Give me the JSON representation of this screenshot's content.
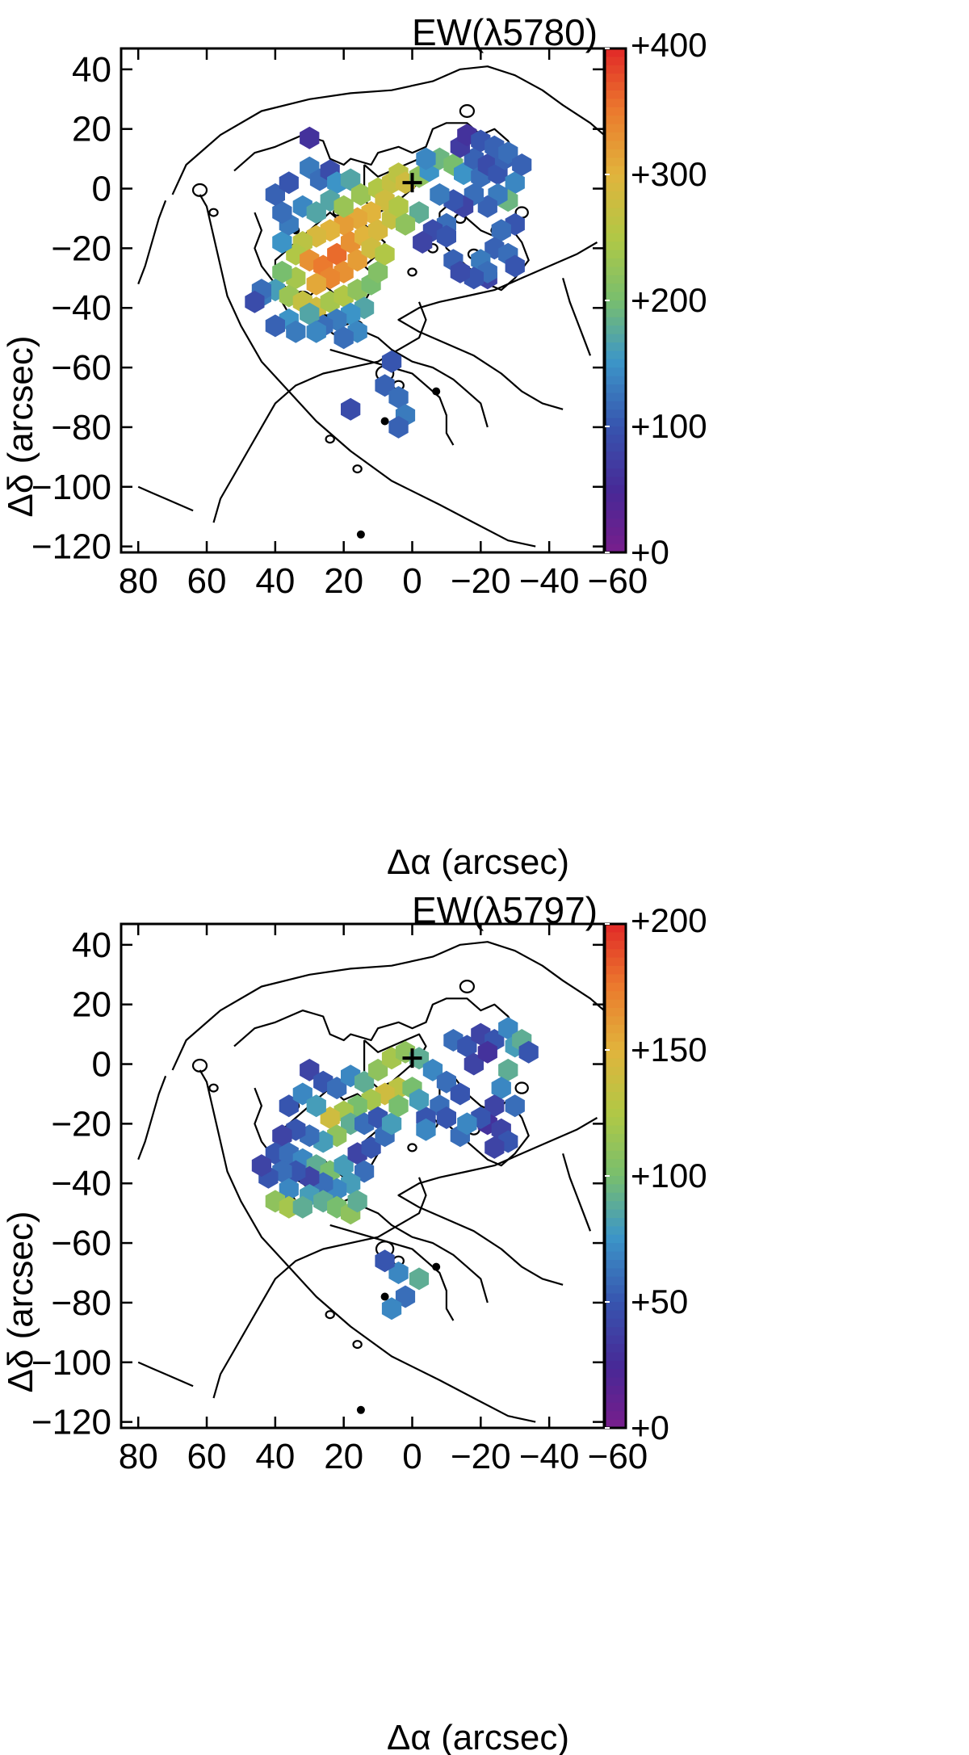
{
  "chart_data": [
    {
      "type": "heatmap",
      "title": "EW(λ5780)",
      "xlabel": "Δα (arcsec)",
      "ylabel": "Δδ (arcsec)",
      "xlim": [
        85,
        -56
      ],
      "ylim": [
        -122,
        47
      ],
      "xticks": [
        "80",
        "60",
        "40",
        "20",
        "0",
        "−20",
        "−40",
        "−60"
      ],
      "xtick_values": [
        80,
        60,
        40,
        20,
        0,
        -20,
        -40,
        -60
      ],
      "yticks": [
        "40",
        "20",
        "0",
        "−20",
        "−40",
        "−60",
        "−80",
        "−100",
        "−120"
      ],
      "ytick_values": [
        40,
        20,
        0,
        -20,
        -40,
        -60,
        -80,
        -100,
        -120
      ],
      "colorbar": {
        "range": [
          0,
          400
        ],
        "ticks": [
          "+0",
          "+100",
          "+200",
          "+300",
          "+400"
        ],
        "tick_values": [
          0,
          100,
          200,
          300,
          400
        ]
      },
      "center_marker": [
        0,
        2
      ],
      "points": [
        [
          30,
          17,
          60
        ],
        [
          30,
          7,
          130
        ],
        [
          27,
          3,
          120
        ],
        [
          24,
          6,
          90
        ],
        [
          22,
          2,
          150
        ],
        [
          18,
          3,
          170
        ],
        [
          15,
          -2,
          230
        ],
        [
          10,
          0,
          250
        ],
        [
          6,
          2,
          270
        ],
        [
          4,
          5,
          260
        ],
        [
          2,
          2,
          280
        ],
        [
          -2,
          4,
          220
        ],
        [
          -5,
          6,
          150
        ],
        [
          -8,
          10,
          190
        ],
        [
          -12,
          8,
          200
        ],
        [
          -15,
          5,
          150
        ],
        [
          -18,
          10,
          110
        ],
        [
          -20,
          4,
          120
        ],
        [
          -22,
          8,
          90
        ],
        [
          -25,
          5,
          100
        ],
        [
          -27,
          10,
          110
        ],
        [
          -30,
          2,
          140
        ],
        [
          -28,
          -4,
          190
        ],
        [
          -25,
          -2,
          130
        ],
        [
          -22,
          -6,
          110
        ],
        [
          -18,
          -2,
          120
        ],
        [
          -15,
          -6,
          80
        ],
        [
          -12,
          -4,
          100
        ],
        [
          -8,
          -2,
          130
        ],
        [
          -10,
          -12,
          120
        ],
        [
          -6,
          -14,
          90
        ],
        [
          -3,
          -18,
          80
        ],
        [
          -14,
          14,
          70
        ],
        [
          -16,
          18,
          60
        ],
        [
          -20,
          16,
          100
        ],
        [
          -24,
          14,
          110
        ],
        [
          -28,
          12,
          120
        ],
        [
          -32,
          8,
          110
        ],
        [
          -30,
          -12,
          100
        ],
        [
          -26,
          -14,
          120
        ],
        [
          -24,
          -20,
          110
        ],
        [
          -28,
          -22,
          120
        ],
        [
          -30,
          -26,
          100
        ],
        [
          -22,
          -30,
          80
        ],
        [
          -10,
          -16,
          100
        ],
        [
          8,
          -4,
          280
        ],
        [
          12,
          -8,
          300
        ],
        [
          16,
          -10,
          310
        ],
        [
          20,
          -12,
          320
        ],
        [
          24,
          -14,
          300
        ],
        [
          28,
          -16,
          290
        ],
        [
          32,
          -18,
          260
        ],
        [
          34,
          -22,
          250
        ],
        [
          30,
          -24,
          330
        ],
        [
          26,
          -26,
          350
        ],
        [
          22,
          -22,
          360
        ],
        [
          18,
          -18,
          330
        ],
        [
          14,
          -16,
          300
        ],
        [
          10,
          -14,
          290
        ],
        [
          6,
          -10,
          270
        ],
        [
          4,
          -6,
          250
        ],
        [
          20,
          -28,
          330
        ],
        [
          24,
          -30,
          340
        ],
        [
          28,
          -32,
          310
        ],
        [
          16,
          -24,
          320
        ],
        [
          12,
          -20,
          280
        ],
        [
          34,
          -30,
          240
        ],
        [
          38,
          -28,
          200
        ],
        [
          40,
          -34,
          160
        ],
        [
          44,
          -36,
          130
        ],
        [
          36,
          -36,
          230
        ],
        [
          32,
          -38,
          270
        ],
        [
          28,
          -40,
          280
        ],
        [
          24,
          -38,
          240
        ],
        [
          20,
          -36,
          250
        ],
        [
          16,
          -34,
          220
        ],
        [
          12,
          -32,
          200
        ],
        [
          14,
          -40,
          170
        ],
        [
          18,
          -42,
          150
        ],
        [
          22,
          -44,
          130
        ],
        [
          26,
          -46,
          120
        ],
        [
          30,
          -42,
          170
        ],
        [
          36,
          -44,
          150
        ],
        [
          40,
          -46,
          110
        ],
        [
          34,
          -48,
          130
        ],
        [
          28,
          -48,
          140
        ],
        [
          16,
          -48,
          140
        ],
        [
          20,
          -50,
          120
        ],
        [
          10,
          -28,
          210
        ],
        [
          8,
          -22,
          250
        ],
        [
          38,
          -18,
          150
        ],
        [
          36,
          -12,
          130
        ],
        [
          32,
          -6,
          140
        ],
        [
          28,
          -8,
          170
        ],
        [
          24,
          -4,
          170
        ],
        [
          20,
          -6,
          230
        ],
        [
          38,
          -8,
          120
        ],
        [
          40,
          -2,
          110
        ],
        [
          36,
          2,
          100
        ],
        [
          6,
          -58,
          100
        ],
        [
          8,
          -66,
          110
        ],
        [
          4,
          -70,
          120
        ],
        [
          2,
          -76,
          130
        ],
        [
          4,
          -80,
          110
        ],
        [
          18,
          -74,
          90
        ],
        [
          44,
          -34,
          120
        ],
        [
          46,
          -38,
          90
        ],
        [
          -4,
          10,
          140
        ],
        [
          -2,
          -8,
          180
        ],
        [
          2,
          -12,
          220
        ],
        [
          -20,
          -24,
          130
        ],
        [
          -22,
          -28,
          120
        ],
        [
          -18,
          -30,
          100
        ],
        [
          -12,
          -24,
          110
        ],
        [
          -14,
          -28,
          90
        ]
      ]
    },
    {
      "type": "heatmap",
      "title": "EW(λ5797)",
      "xlabel": "Δα (arcsec)",
      "ylabel": "Δδ (arcsec)",
      "xlim": [
        85,
        -56
      ],
      "ylim": [
        -122,
        47
      ],
      "xticks": [
        "80",
        "60",
        "40",
        "20",
        "0",
        "−20",
        "−40",
        "−60"
      ],
      "xtick_values": [
        80,
        60,
        40,
        20,
        0,
        -20,
        -40,
        -60
      ],
      "yticks": [
        "40",
        "20",
        "0",
        "−20",
        "−40",
        "−60",
        "−80",
        "−100",
        "−120"
      ],
      "ytick_values": [
        40,
        20,
        0,
        -20,
        -40,
        -60,
        -80,
        -100,
        -120
      ],
      "colorbar": {
        "range": [
          0,
          200
        ],
        "ticks": [
          "+0",
          "+50",
          "+100",
          "+150",
          "+200"
        ],
        "tick_values": [
          0,
          50,
          100,
          150,
          200
        ]
      },
      "center_marker": [
        0,
        2
      ],
      "points": [
        [
          30,
          -2,
          40
        ],
        [
          26,
          -6,
          50
        ],
        [
          22,
          -8,
          60
        ],
        [
          18,
          -4,
          70
        ],
        [
          14,
          -6,
          90
        ],
        [
          10,
          -2,
          110
        ],
        [
          6,
          2,
          120
        ],
        [
          2,
          4,
          110
        ],
        [
          -2,
          2,
          90
        ],
        [
          -6,
          -2,
          70
        ],
        [
          -10,
          -6,
          60
        ],
        [
          -14,
          -10,
          50
        ],
        [
          -8,
          -14,
          60
        ],
        [
          -4,
          -18,
          50
        ],
        [
          -12,
          8,
          60
        ],
        [
          -16,
          6,
          50
        ],
        [
          -20,
          10,
          40
        ],
        [
          -24,
          8,
          50
        ],
        [
          -28,
          12,
          70
        ],
        [
          -30,
          6,
          80
        ],
        [
          -28,
          -2,
          90
        ],
        [
          -26,
          -8,
          70
        ],
        [
          -24,
          -14,
          40
        ],
        [
          -22,
          -20,
          30
        ],
        [
          -26,
          -22,
          40
        ],
        [
          -28,
          -26,
          50
        ],
        [
          -24,
          -28,
          40
        ],
        [
          -20,
          -18,
          50
        ],
        [
          -30,
          -14,
          60
        ],
        [
          -32,
          8,
          90
        ],
        [
          4,
          -8,
          130
        ],
        [
          8,
          -10,
          140
        ],
        [
          12,
          -12,
          120
        ],
        [
          16,
          -14,
          100
        ],
        [
          20,
          -16,
          120
        ],
        [
          24,
          -18,
          140
        ],
        [
          18,
          -20,
          90
        ],
        [
          14,
          -20,
          60
        ],
        [
          10,
          -18,
          50
        ],
        [
          22,
          -24,
          110
        ],
        [
          26,
          -26,
          80
        ],
        [
          30,
          -24,
          60
        ],
        [
          34,
          -22,
          50
        ],
        [
          38,
          -24,
          40
        ],
        [
          40,
          -30,
          50
        ],
        [
          36,
          -30,
          60
        ],
        [
          32,
          -32,
          70
        ],
        [
          28,
          -34,
          90
        ],
        [
          24,
          -36,
          100
        ],
        [
          20,
          -34,
          80
        ],
        [
          16,
          -30,
          40
        ],
        [
          12,
          -28,
          50
        ],
        [
          14,
          -36,
          60
        ],
        [
          18,
          -40,
          80
        ],
        [
          22,
          -42,
          70
        ],
        [
          26,
          -40,
          60
        ],
        [
          30,
          -38,
          40
        ],
        [
          34,
          -36,
          50
        ],
        [
          38,
          -36,
          60
        ],
        [
          42,
          -38,
          50
        ],
        [
          44,
          -34,
          40
        ],
        [
          36,
          -42,
          70
        ],
        [
          30,
          -44,
          80
        ],
        [
          26,
          -46,
          90
        ],
        [
          22,
          -48,
          100
        ],
        [
          18,
          -50,
          110
        ],
        [
          16,
          -46,
          90
        ],
        [
          40,
          -46,
          110
        ],
        [
          36,
          -48,
          120
        ],
        [
          32,
          -48,
          90
        ],
        [
          8,
          -24,
          60
        ],
        [
          6,
          -20,
          80
        ],
        [
          4,
          -14,
          100
        ],
        [
          36,
          -14,
          50
        ],
        [
          32,
          -10,
          70
        ],
        [
          28,
          -14,
          80
        ],
        [
          0,
          -8,
          100
        ],
        [
          -2,
          -12,
          80
        ],
        [
          -4,
          -22,
          70
        ],
        [
          -10,
          -18,
          50
        ],
        [
          -14,
          -24,
          60
        ],
        [
          -16,
          -20,
          70
        ],
        [
          4,
          -70,
          70
        ],
        [
          2,
          -78,
          60
        ],
        [
          6,
          -82,
          70
        ],
        [
          -2,
          -72,
          90
        ],
        [
          8,
          -66,
          50
        ],
        [
          -18,
          0,
          40
        ],
        [
          -22,
          4,
          30
        ],
        [
          -34,
          4,
          50
        ]
      ]
    }
  ]
}
